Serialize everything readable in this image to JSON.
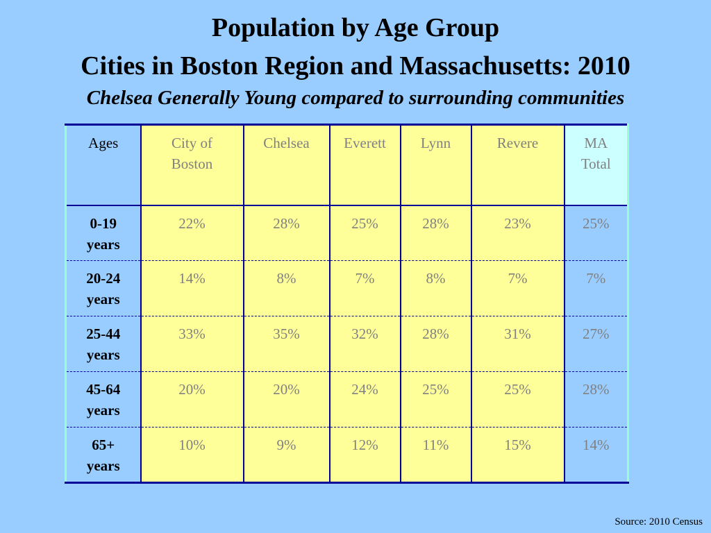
{
  "title_line1": "Population by Age Group",
  "title_line2": "Cities in Boston Region and Massachusetts: 2010",
  "subtitle": "Chelsea Generally Young compared to surrounding communities",
  "table": {
    "headers": {
      "ages": "Ages",
      "boston_line1": "City of",
      "boston_line2": "Boston",
      "chelsea": "Chelsea",
      "everett": "Everett",
      "lynn": "Lynn",
      "revere": "Revere",
      "ma_line1": "MA",
      "ma_line2": "Total"
    },
    "rows": [
      {
        "age1": "0-19",
        "age2": "years",
        "boston": "22%",
        "chelsea": "28%",
        "everett": "25%",
        "lynn": "28%",
        "revere": "23%",
        "ma": "25%"
      },
      {
        "age1": "20-24",
        "age2": "years",
        "boston": "14%",
        "chelsea": "8%",
        "everett": "7%",
        "lynn": "8%",
        "revere": "7%",
        "ma": "7%"
      },
      {
        "age1": "25-44",
        "age2": "years",
        "boston": "33%",
        "chelsea": "35%",
        "everett": "32%",
        "lynn": "28%",
        "revere": "31%",
        "ma": "27%"
      },
      {
        "age1": "45-64",
        "age2": "years",
        "boston": "20%",
        "chelsea": "20%",
        "everett": "24%",
        "lynn": "25%",
        "revere": "25%",
        "ma": "28%"
      },
      {
        "age1": "65+",
        "age2": "years",
        "boston": "10%",
        "chelsea": "9%",
        "everett": "12%",
        "lynn": "11%",
        "revere": "15%",
        "ma": "14%"
      }
    ]
  },
  "source": "Source:  2010 Census",
  "colors": {
    "background": "#99ccff",
    "city_cells": "#ffff99",
    "ma_header": "#ccffff",
    "grid": "#000099",
    "value_text": "#808080"
  }
}
